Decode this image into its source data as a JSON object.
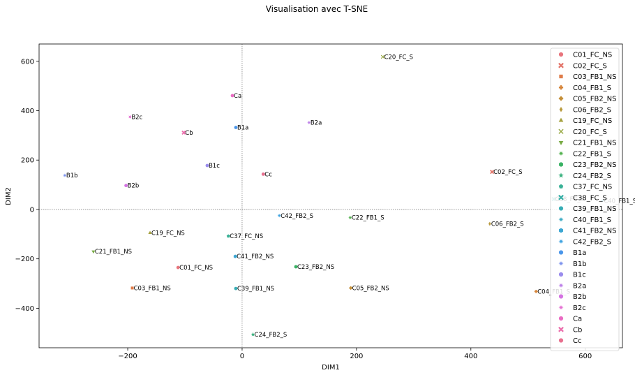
{
  "chart_data": {
    "type": "scatter",
    "title": "Visualisation avec T-SNE",
    "xlabel": "DIM1",
    "ylabel": "DIM2",
    "xlim": [
      -355,
      665
    ],
    "ylim": [
      -560,
      670
    ],
    "xticks": [
      -200,
      0,
      200,
      400,
      600
    ],
    "yticks": [
      -400,
      -200,
      0,
      200,
      400,
      600
    ],
    "zero_lines": true,
    "legend_position": "right",
    "points": [
      {
        "name": "C01_FC_NS",
        "x": -112,
        "y": -235,
        "color": "#e8747c",
        "marker": "circle"
      },
      {
        "name": "C02_FC_S",
        "x": 437,
        "y": 152,
        "color": "#e37469",
        "marker": "x"
      },
      {
        "name": "C03_FB1_NS",
        "x": -192,
        "y": -318,
        "color": "#df7c4a",
        "marker": "square"
      },
      {
        "name": "C04_FB1_S",
        "x": 514,
        "y": -332,
        "color": "#d6853a",
        "marker": "plus"
      },
      {
        "name": "C05_FB2_NS",
        "x": 190,
        "y": -318,
        "color": "#c48f38",
        "marker": "diamond"
      },
      {
        "name": "C06_FB2_S",
        "x": 433,
        "y": -58,
        "color": "#b99a3d",
        "marker": "diamond-thin"
      },
      {
        "name": "C19_FC_NS",
        "x": -161,
        "y": -95,
        "color": "#a5a13e",
        "marker": "triangle-up"
      },
      {
        "name": "C20_FC_S",
        "x": 246,
        "y": 618,
        "color": "#95a63e",
        "marker": "x-thin"
      },
      {
        "name": "C21_FB1_NS",
        "x": -260,
        "y": -170,
        "color": "#78ab44",
        "marker": "triangle-down"
      },
      {
        "name": "C22_FB1_S",
        "x": 189,
        "y": -33,
        "color": "#50b14c",
        "marker": "star8"
      },
      {
        "name": "C23_FB2_NS",
        "x": 94,
        "y": -232,
        "color": "#39b264",
        "marker": "hexagon"
      },
      {
        "name": "C24_FB2_S",
        "x": 19,
        "y": -506,
        "color": "#3bb27f",
        "marker": "star"
      },
      {
        "name": "C37_FC_NS",
        "x": -24,
        "y": -108,
        "color": "#39b196",
        "marker": "pentagon"
      },
      {
        "name": "C38_FC_S",
        "x": 545,
        "y": 42,
        "color": "#38afa6",
        "marker": "x"
      },
      {
        "name": "C39_FB1_NS",
        "x": -11,
        "y": -320,
        "color": "#38adb5",
        "marker": "circle"
      },
      {
        "name": "C40_FB1_S",
        "x": 630,
        "y": 35,
        "color": "#3aaac3",
        "marker": "star8"
      },
      {
        "name": "C41_FB2_NS",
        "x": -12,
        "y": -190,
        "color": "#3ba6d2",
        "marker": "hexagon"
      },
      {
        "name": "C42_FB2_S",
        "x": 65,
        "y": -25,
        "color": "#3da2e0",
        "marker": "star8"
      },
      {
        "name": "B1a",
        "x": -11,
        "y": 332,
        "color": "#4a96ea",
        "marker": "circle"
      },
      {
        "name": "B1b",
        "x": -310,
        "y": 138,
        "color": "#7b91ed",
        "marker": "star8"
      },
      {
        "name": "B1c",
        "x": -61,
        "y": 178,
        "color": "#9a8ced",
        "marker": "circle"
      },
      {
        "name": "B2a",
        "x": 117,
        "y": 352,
        "color": "#bc7fe8",
        "marker": "star8"
      },
      {
        "name": "B2b",
        "x": -203,
        "y": 97,
        "color": "#d473e2",
        "marker": "circle"
      },
      {
        "name": "B2c",
        "x": -196,
        "y": 375,
        "color": "#e46fd2",
        "marker": "star8"
      },
      {
        "name": "Ca",
        "x": -17,
        "y": 461,
        "color": "#ea6bc3",
        "marker": "circle"
      },
      {
        "name": "Cb",
        "x": -102,
        "y": 311,
        "color": "#eb6fad",
        "marker": "x"
      },
      {
        "name": "Cc",
        "x": 37,
        "y": 143,
        "color": "#e8708f",
        "marker": "circle"
      }
    ]
  }
}
